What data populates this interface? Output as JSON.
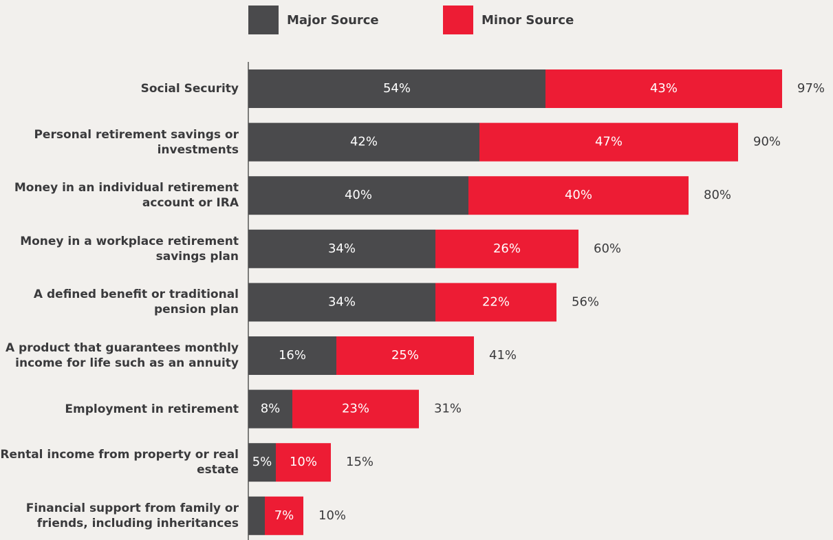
{
  "chart_data": {
    "type": "stacked-bar-horizontal",
    "categories": [
      "Social Security",
      "Personal retirement savings or investments",
      "Money in an individual retirement account or IRA",
      "Money in a workplace retirement savings plan",
      "A defined benefit or traditional pension plan",
      "A product that guarantees monthly income for life such as an annuity",
      "Employment in retirement",
      "Rental income from property or real estate",
      "Financial support from family or friends, including inheritances"
    ],
    "series": [
      {
        "name": "Major Source",
        "color": "#4a4a4c",
        "values": [
          54,
          42,
          40,
          34,
          34,
          16,
          8,
          5,
          3
        ],
        "value_labels": [
          "54%",
          "42%",
          "40%",
          "34%",
          "34%",
          "16%",
          "8%",
          "5%",
          null
        ]
      },
      {
        "name": "Minor Source",
        "color": "#ed1c34",
        "values": [
          43,
          47,
          40,
          26,
          22,
          25,
          23,
          10,
          7
        ],
        "value_labels": [
          "43%",
          "47%",
          "40%",
          "26%",
          "22%",
          "25%",
          "23%",
          "10%",
          "7%"
        ]
      }
    ],
    "total_labels": [
      "97%",
      "90%",
      "80%",
      "60%",
      "56%",
      "41%",
      "31%",
      "15%",
      "10%"
    ],
    "xlim": [
      0,
      100
    ]
  }
}
